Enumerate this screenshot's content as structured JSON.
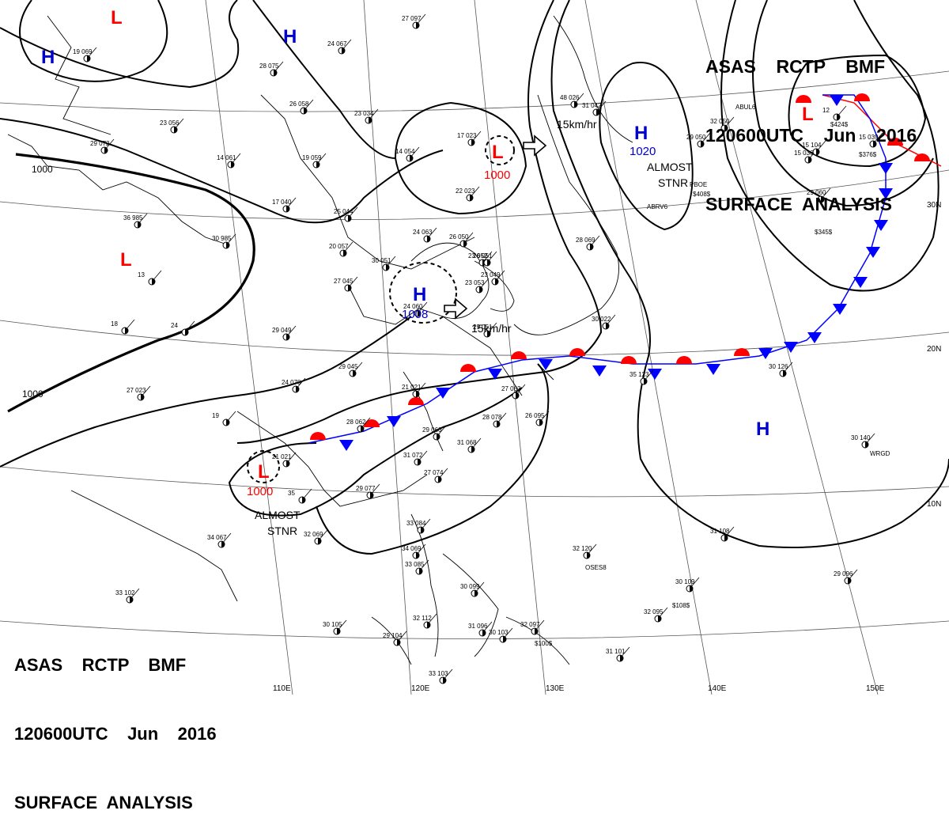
{
  "header": {
    "line1": "ASAS    RCTP    BMF",
    "line2": "120600UTC    Jun    2016",
    "line3": "SURFACE  ANALYSIS"
  },
  "pressure_centers": [
    {
      "type": "L",
      "value": ""
    },
    {
      "type": "H",
      "value": ""
    },
    {
      "type": "H",
      "value": ""
    },
    {
      "type": "L",
      "value": ""
    },
    {
      "type": "L",
      "value": "1000"
    },
    {
      "type": "H",
      "value": "1008"
    },
    {
      "type": "H",
      "value": "1020"
    },
    {
      "type": "L",
      "value": ""
    },
    {
      "type": "L",
      "value": "1000"
    },
    {
      "type": "H",
      "value": ""
    }
  ],
  "isobar_labels": [
    "1000",
    "1000"
  ],
  "annotations": [
    "15km/hr",
    "15km/hr",
    "ALMOST",
    "STNR",
    "ALMOST",
    "STNR"
  ],
  "lat_labels": [
    "30N",
    "20N",
    "10N"
  ],
  "lon_labels": [
    "110E",
    "120E",
    "130E",
    "140E",
    "150E"
  ],
  "stations": [
    "19 069",
    "24 067",
    "28 075",
    "26 058",
    "23 034",
    "14 054",
    "17 023",
    "22 023",
    "23 056",
    "14 061",
    "19 059",
    "29 072",
    "17 040",
    "25 044",
    "20 057",
    "36 985",
    "30 985",
    "13",
    "24 063",
    "26 050",
    "23 052",
    "23 053",
    "30 051",
    "27 045",
    "24 060",
    "18",
    "24",
    "29 049",
    "29 045",
    "24 070",
    "27 023",
    "19",
    "28 062",
    "21 021",
    "21 021",
    "27 063",
    "28 078",
    "26 095",
    "29 060",
    "31 068",
    "31 072",
    "27 074",
    "29 077",
    "35",
    "32 069",
    "34 067",
    "33 084",
    "34 069",
    "33 085",
    "30 099",
    "33 102",
    "30 105",
    "32 112",
    "29 104",
    "31 096",
    "30 103",
    "32 097",
    "33 103",
    "31 101",
    "32 095",
    "32 120",
    "31 108",
    "30 109",
    "29 096",
    "30 140",
    "30 126",
    "35 123",
    "27 097",
    "31 042",
    "48 026",
    "30 022",
    "28 069",
    "15 036",
    "15 039",
    "32 050",
    "29 050",
    "12",
    "15 104",
    "29 060",
    "26 051",
    "23 049",
    "29 051"
  ],
  "station_ids": [
    "ABRV6",
    "PBOE",
    "$408$",
    "$345$",
    "ABUL6",
    "$424$",
    "$376$",
    "OSES8",
    "$108$",
    "$100$",
    "WRGD"
  ],
  "colors": {
    "low": "#ff0000",
    "high": "#0000cc",
    "warm_front": "#ff0000",
    "cold_front": "#0000ff",
    "lines": "#000000"
  }
}
